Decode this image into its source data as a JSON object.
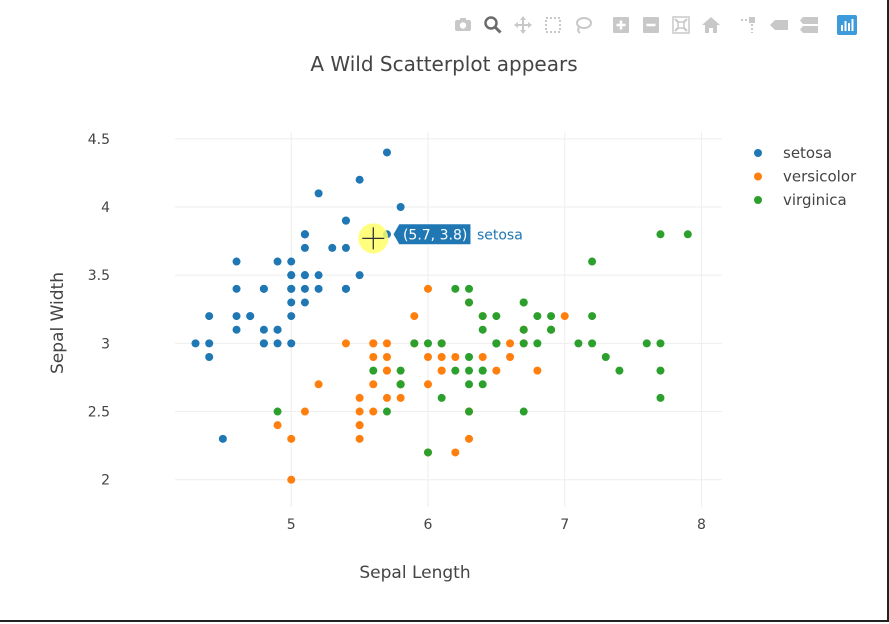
{
  "modebar": {
    "buttons": [
      {
        "name": "download-plot-button",
        "icon": "camera-icon"
      },
      {
        "name": "zoom-button",
        "icon": "magnifier-icon",
        "active": true
      },
      {
        "name": "pan-button",
        "icon": "pan-arrows-icon"
      },
      {
        "name": "box-select-button",
        "icon": "box-select-icon"
      },
      {
        "name": "lasso-select-button",
        "icon": "lasso-icon"
      },
      {
        "name": "zoom-in-button",
        "icon": "plus-box-icon"
      },
      {
        "name": "zoom-out-button",
        "icon": "minus-box-icon"
      },
      {
        "name": "autoscale-button",
        "icon": "autoscale-icon"
      },
      {
        "name": "reset-axes-button",
        "icon": "home-icon"
      },
      {
        "name": "spike-lines-button",
        "icon": "spike-lines-icon"
      },
      {
        "name": "hover-closest-button",
        "icon": "hover-closest-icon"
      },
      {
        "name": "hover-compare-button",
        "icon": "hover-compare-icon"
      },
      {
        "name": "plotly-logo-button",
        "icon": "plotly-logo-icon"
      }
    ],
    "colors": {
      "icon": "#c8c8c8",
      "active": "#6b6b6b",
      "logo": "#3d9bdc"
    }
  },
  "hover": {
    "x": 5.7,
    "y": 3.8,
    "label": "(5.7, 3.8)",
    "series": "setosa",
    "cursor_x": 5.6,
    "cursor_y": 3.77
  },
  "chart_data": {
    "type": "scatter",
    "title": "A Wild Scatterplot appears",
    "xlabel": "Sepal Length",
    "ylabel": "Sepal Width",
    "xlim": [
      4.15,
      8.15
    ],
    "ylim": [
      1.8,
      4.55
    ],
    "xticks": [
      5,
      6,
      7,
      8
    ],
    "yticks": [
      2,
      2.5,
      3,
      3.5,
      4,
      4.5
    ],
    "xtick_labels": [
      "5",
      "6",
      "7",
      "8"
    ],
    "ytick_labels": [
      "2",
      "2.5",
      "3",
      "3.5",
      "4",
      "4.5"
    ],
    "grid": true,
    "legend_position": "top-right",
    "series": [
      {
        "name": "setosa",
        "color": "#1f77b4",
        "points": [
          [
            5.1,
            3.5
          ],
          [
            4.9,
            3.0
          ],
          [
            4.7,
            3.2
          ],
          [
            4.6,
            3.1
          ],
          [
            5.0,
            3.6
          ],
          [
            5.4,
            3.9
          ],
          [
            4.6,
            3.4
          ],
          [
            5.0,
            3.4
          ],
          [
            4.4,
            2.9
          ],
          [
            4.9,
            3.1
          ],
          [
            5.4,
            3.7
          ],
          [
            4.8,
            3.4
          ],
          [
            4.8,
            3.0
          ],
          [
            4.3,
            3.0
          ],
          [
            5.8,
            4.0
          ],
          [
            5.7,
            4.4
          ],
          [
            5.4,
            3.9
          ],
          [
            5.1,
            3.5
          ],
          [
            5.7,
            3.8
          ],
          [
            5.1,
            3.8
          ],
          [
            5.4,
            3.4
          ],
          [
            5.1,
            3.7
          ],
          [
            4.6,
            3.6
          ],
          [
            5.1,
            3.3
          ],
          [
            4.8,
            3.4
          ],
          [
            5.0,
            3.0
          ],
          [
            5.0,
            3.4
          ],
          [
            5.2,
            3.5
          ],
          [
            5.2,
            3.4
          ],
          [
            4.7,
            3.2
          ],
          [
            4.8,
            3.1
          ],
          [
            5.4,
            3.4
          ],
          [
            5.2,
            4.1
          ],
          [
            5.5,
            4.2
          ],
          [
            4.9,
            3.1
          ],
          [
            5.0,
            3.2
          ],
          [
            5.5,
            3.5
          ],
          [
            4.9,
            3.6
          ],
          [
            4.4,
            3.0
          ],
          [
            5.1,
            3.4
          ],
          [
            5.0,
            3.5
          ],
          [
            4.5,
            2.3
          ],
          [
            4.4,
            3.2
          ],
          [
            5.0,
            3.5
          ],
          [
            5.1,
            3.8
          ],
          [
            4.8,
            3.0
          ],
          [
            5.1,
            3.8
          ],
          [
            4.6,
            3.2
          ],
          [
            5.3,
            3.7
          ],
          [
            5.0,
            3.3
          ]
        ]
      },
      {
        "name": "versicolor",
        "color": "#ff7f0e",
        "points": [
          [
            7.0,
            3.2
          ],
          [
            6.4,
            3.2
          ],
          [
            6.9,
            3.1
          ],
          [
            5.5,
            2.3
          ],
          [
            6.5,
            2.8
          ],
          [
            5.7,
            2.8
          ],
          [
            6.3,
            3.3
          ],
          [
            4.9,
            2.4
          ],
          [
            6.6,
            2.9
          ],
          [
            5.2,
            2.7
          ],
          [
            5.0,
            2.0
          ],
          [
            5.9,
            3.0
          ],
          [
            6.0,
            2.2
          ],
          [
            6.1,
            2.9
          ],
          [
            5.6,
            2.9
          ],
          [
            6.7,
            3.1
          ],
          [
            5.6,
            3.0
          ],
          [
            5.8,
            2.7
          ],
          [
            6.2,
            2.2
          ],
          [
            5.6,
            2.5
          ],
          [
            5.9,
            3.2
          ],
          [
            6.1,
            2.8
          ],
          [
            6.3,
            2.5
          ],
          [
            6.1,
            2.8
          ],
          [
            6.4,
            2.9
          ],
          [
            6.6,
            3.0
          ],
          [
            6.8,
            2.8
          ],
          [
            6.7,
            3.0
          ],
          [
            6.0,
            2.9
          ],
          [
            5.7,
            2.6
          ],
          [
            5.5,
            2.4
          ],
          [
            5.5,
            2.4
          ],
          [
            5.8,
            2.7
          ],
          [
            6.0,
            2.7
          ],
          [
            5.4,
            3.0
          ],
          [
            6.0,
            3.4
          ],
          [
            6.7,
            3.1
          ],
          [
            6.3,
            2.3
          ],
          [
            5.6,
            3.0
          ],
          [
            5.5,
            2.5
          ],
          [
            5.5,
            2.6
          ],
          [
            6.1,
            3.0
          ],
          [
            5.8,
            2.6
          ],
          [
            5.0,
            2.3
          ],
          [
            5.6,
            2.7
          ],
          [
            5.7,
            3.0
          ],
          [
            5.7,
            2.9
          ],
          [
            6.2,
            2.9
          ],
          [
            5.1,
            2.5
          ],
          [
            5.7,
            2.8
          ]
        ]
      },
      {
        "name": "virginica",
        "color": "#2ca02c",
        "points": [
          [
            6.3,
            3.3
          ],
          [
            5.8,
            2.7
          ],
          [
            7.1,
            3.0
          ],
          [
            6.3,
            2.9
          ],
          [
            6.5,
            3.0
          ],
          [
            7.6,
            3.0
          ],
          [
            4.9,
            2.5
          ],
          [
            7.3,
            2.9
          ],
          [
            6.7,
            2.5
          ],
          [
            7.2,
            3.6
          ],
          [
            6.5,
            3.2
          ],
          [
            6.4,
            2.7
          ],
          [
            6.8,
            3.0
          ],
          [
            5.7,
            2.5
          ],
          [
            5.8,
            2.8
          ],
          [
            6.4,
            3.2
          ],
          [
            6.5,
            3.0
          ],
          [
            7.7,
            3.8
          ],
          [
            7.7,
            2.6
          ],
          [
            6.0,
            2.2
          ],
          [
            6.9,
            3.2
          ],
          [
            5.6,
            2.8
          ],
          [
            7.7,
            2.8
          ],
          [
            6.3,
            2.7
          ],
          [
            6.7,
            3.3
          ],
          [
            7.2,
            3.2
          ],
          [
            6.2,
            2.8
          ],
          [
            6.1,
            3.0
          ],
          [
            6.4,
            2.8
          ],
          [
            7.2,
            3.0
          ],
          [
            7.4,
            2.8
          ],
          [
            7.9,
            3.8
          ],
          [
            6.4,
            2.8
          ],
          [
            6.3,
            2.8
          ],
          [
            6.1,
            2.6
          ],
          [
            7.7,
            3.0
          ],
          [
            6.3,
            3.4
          ],
          [
            6.4,
            3.1
          ],
          [
            6.0,
            3.0
          ],
          [
            6.9,
            3.1
          ],
          [
            6.7,
            3.1
          ],
          [
            6.9,
            3.1
          ],
          [
            5.8,
            2.7
          ],
          [
            6.8,
            3.2
          ],
          [
            6.7,
            3.3
          ],
          [
            6.7,
            3.0
          ],
          [
            6.3,
            2.5
          ],
          [
            6.5,
            3.0
          ],
          [
            6.2,
            3.4
          ],
          [
            5.9,
            3.0
          ]
        ]
      }
    ]
  }
}
